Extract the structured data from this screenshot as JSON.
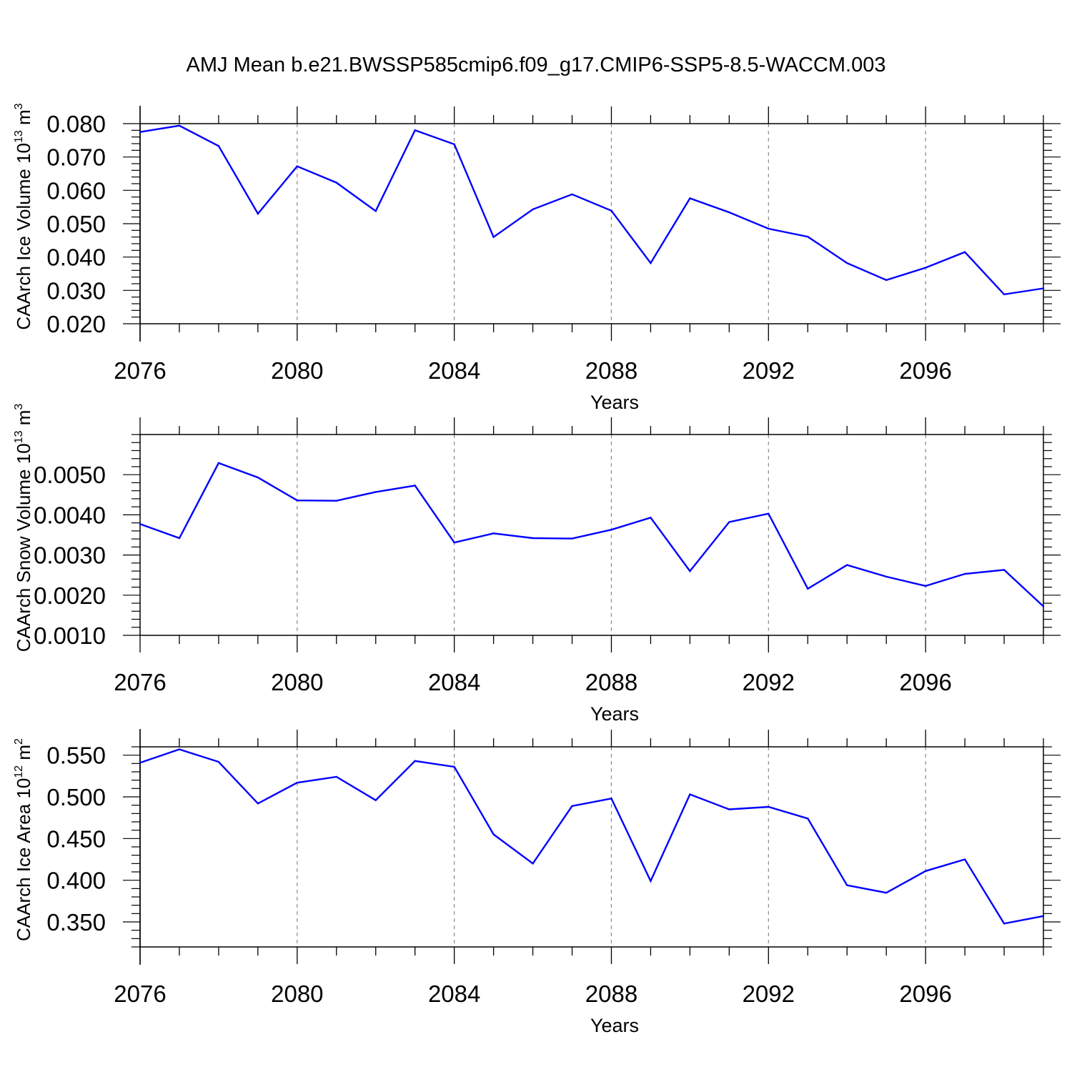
{
  "figure": {
    "title": "AMJ Mean b.e21.BWSSP585cmip6.f09_g17.CMIP6-SSP5-8.5-WACCM.003",
    "line_color": "#0000ff",
    "grid_color": "#888888",
    "axis_color": "#000000"
  },
  "chart_data": [
    {
      "type": "line",
      "title": "AMJ Mean b.e21.BWSSP585cmip6.f09_g17.CMIP6-SSP5-8.5-WACCM.003",
      "xlabel": "Years",
      "ylabel": "CAArch Ice Volume 10",
      "ylabel_exp": "13",
      "ylabel_unit": "m",
      "ylabel_unit_exp": "3",
      "xlim": [
        2076,
        2099
      ],
      "ylim": [
        0.02,
        0.08
      ],
      "x_major_ticks": [
        2076,
        2080,
        2084,
        2088,
        2092,
        2096
      ],
      "x_tick_labels": [
        "2076",
        "2080",
        "2084",
        "2088",
        "2092",
        "2096"
      ],
      "y_major_ticks": [
        0.02,
        0.03,
        0.04,
        0.05,
        0.06,
        0.07,
        0.08
      ],
      "y_tick_labels": [
        "0.020",
        "0.030",
        "0.040",
        "0.050",
        "0.060",
        "0.070",
        "0.080"
      ],
      "y_minor_step": 0.002,
      "grid": "vertical dashed at major x ticks",
      "x": [
        2076,
        2077,
        2078,
        2079,
        2080,
        2081,
        2082,
        2083,
        2084,
        2085,
        2086,
        2087,
        2088,
        2089,
        2090,
        2091,
        2092,
        2093,
        2094,
        2095,
        2096,
        2097,
        2098,
        2099
      ],
      "series": [
        {
          "values": [
            0.0775,
            0.0794,
            0.0733,
            0.053,
            0.0672,
            0.0623,
            0.0538,
            0.078,
            0.0738,
            0.046,
            0.0543,
            0.0588,
            0.0539,
            0.0382,
            0.0576,
            0.0534,
            0.0485,
            0.0461,
            0.0382,
            0.0331,
            0.0368,
            0.0415,
            0.0288,
            0.0306
          ]
        }
      ]
    },
    {
      "type": "line",
      "xlabel": "Years",
      "ylabel": "CAArch Snow Volume 10",
      "ylabel_exp": "13",
      "ylabel_unit": "m",
      "ylabel_unit_exp": "3",
      "xlim": [
        2076,
        2099
      ],
      "ylim": [
        0.001,
        0.006
      ],
      "x_major_ticks": [
        2076,
        2080,
        2084,
        2088,
        2092,
        2096
      ],
      "x_tick_labels": [
        "2076",
        "2080",
        "2084",
        "2088",
        "2092",
        "2096"
      ],
      "y_major_ticks": [
        0.001,
        0.002,
        0.003,
        0.004,
        0.005
      ],
      "y_tick_labels": [
        "0.0010",
        "0.0020",
        "0.0030",
        "0.0040",
        "0.0050"
      ],
      "y_minor_step": 0.0002,
      "grid": "vertical dashed at major x ticks",
      "x": [
        2076,
        2077,
        2078,
        2079,
        2080,
        2081,
        2082,
        2083,
        2084,
        2085,
        2086,
        2087,
        2088,
        2089,
        2090,
        2091,
        2092,
        2093,
        2094,
        2095,
        2096,
        2097,
        2098,
        2099
      ],
      "series": [
        {
          "values": [
            0.00377,
            0.00342,
            0.00529,
            0.00493,
            0.00436,
            0.00435,
            0.00457,
            0.00473,
            0.00331,
            0.00354,
            0.00342,
            0.00341,
            0.00363,
            0.00393,
            0.0026,
            0.00382,
            0.00403,
            0.00216,
            0.00275,
            0.00246,
            0.00223,
            0.00253,
            0.00263,
            0.00172
          ]
        }
      ]
    },
    {
      "type": "line",
      "xlabel": "Years",
      "ylabel": "CAArch Ice Area 10",
      "ylabel_exp": "12",
      "ylabel_unit": "m",
      "ylabel_unit_exp": "2",
      "xlim": [
        2076,
        2099
      ],
      "ylim": [
        0.32,
        0.56
      ],
      "x_major_ticks": [
        2076,
        2080,
        2084,
        2088,
        2092,
        2096
      ],
      "x_tick_labels": [
        "2076",
        "2080",
        "2084",
        "2088",
        "2092",
        "2096"
      ],
      "y_major_ticks": [
        0.35,
        0.4,
        0.45,
        0.5,
        0.55
      ],
      "y_tick_labels": [
        "0.350",
        "0.400",
        "0.450",
        "0.500",
        "0.550"
      ],
      "y_minor_step": 0.01,
      "grid": "vertical dashed at major x ticks",
      "x": [
        2076,
        2077,
        2078,
        2079,
        2080,
        2081,
        2082,
        2083,
        2084,
        2085,
        2086,
        2087,
        2088,
        2089,
        2090,
        2091,
        2092,
        2093,
        2094,
        2095,
        2096,
        2097,
        2098,
        2099
      ],
      "series": [
        {
          "values": [
            0.541,
            0.557,
            0.542,
            0.492,
            0.517,
            0.524,
            0.496,
            0.543,
            0.536,
            0.455,
            0.42,
            0.489,
            0.498,
            0.399,
            0.503,
            0.485,
            0.488,
            0.474,
            0.394,
            0.385,
            0.411,
            0.425,
            0.348,
            0.357
          ]
        }
      ]
    }
  ]
}
